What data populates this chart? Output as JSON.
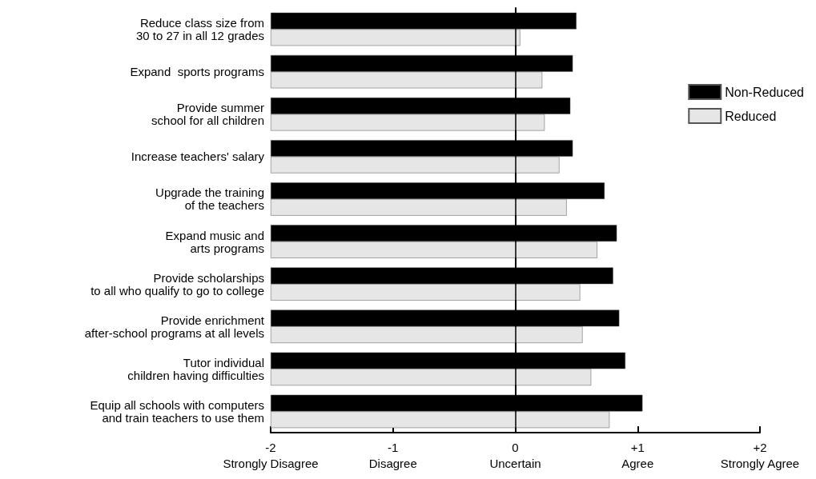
{
  "chart_data": {
    "type": "bar",
    "orientation": "horizontal",
    "categories": [
      "Reduce class size from\n30 to 27 in all 12 grades",
      "Expand  sports programs",
      "Provide summer\nschool for all children",
      "Increase teachers' salary",
      "Upgrade the training\nof the teachers",
      "Expand music and\narts programs",
      "Provide scholarships\nto all who qualify to go to college",
      "Provide enrichment\nafter-school programs at all levels",
      "Tutor individual\nchildren having difficulties",
      "Equip all schools with computers\nand train teachers to use them"
    ],
    "series": [
      {
        "name": "Non-Reduced",
        "color": "#000000",
        "base": [
          -2,
          -2,
          -2,
          -2,
          -2,
          -2,
          -2,
          -2,
          -2,
          -2
        ],
        "values": [
          2.5,
          2.47,
          2.45,
          2.47,
          2.73,
          2.83,
          2.8,
          2.85,
          2.9,
          3.04
        ]
      },
      {
        "name": "Reduced",
        "color": "#e6e6e6",
        "base": [
          -2,
          -2,
          -2,
          -2,
          -2,
          -2,
          -2,
          -2,
          -2,
          -2
        ],
        "values": [
          2.04,
          2.22,
          2.24,
          2.36,
          2.42,
          2.67,
          2.53,
          2.55,
          2.62,
          2.77
        ]
      }
    ],
    "xlim": [
      -2,
      2
    ],
    "xticks": [
      {
        "value": -2,
        "label": "-2\nStrongly Disagree"
      },
      {
        "value": -1,
        "label": "-1\nDisagree"
      },
      {
        "value": 0,
        "label": "0\nUncertain"
      },
      {
        "value": 1,
        "label": "+1\nAgree"
      },
      {
        "value": 2,
        "label": "+2\nStrongly Agree"
      }
    ],
    "ref_lines": [
      {
        "axis": "x",
        "value": 0,
        "color": "#000000"
      }
    ],
    "grid": false,
    "legend": "top right"
  }
}
